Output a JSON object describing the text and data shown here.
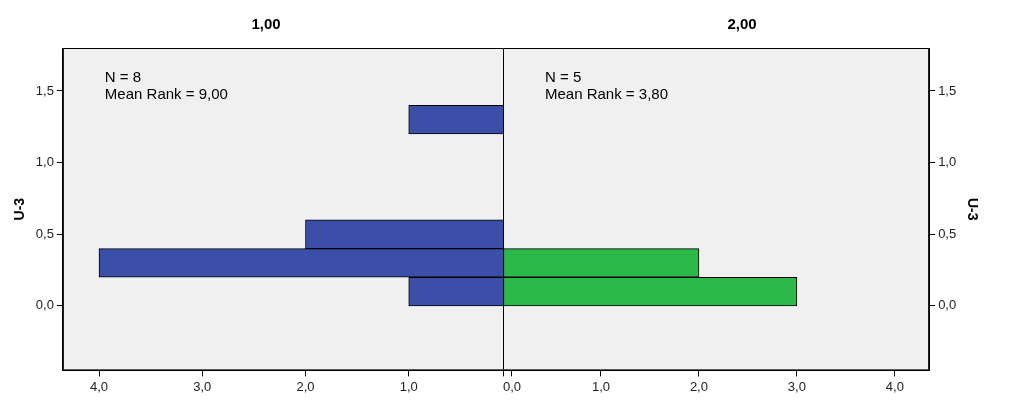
{
  "chart_data": [
    {
      "type": "histogram",
      "orientation": "horizontal",
      "title": "1,00",
      "ylabel": "U-3",
      "annotations": [
        "N = 8",
        "Mean Rank = 9,00"
      ],
      "bins": [
        0,
        0.2,
        0.4,
        0.6,
        0.8,
        1.0,
        1.2,
        1.4
      ],
      "values": [
        1,
        4,
        2,
        0,
        0,
        0,
        1
      ],
      "color": "#3c4fa8",
      "xlim": [
        4.35,
        0
      ],
      "xticks": [
        {
          "value": 4,
          "label": "4,0"
        },
        {
          "value": 3,
          "label": "3,0"
        },
        {
          "value": 2,
          "label": "2,0"
        },
        {
          "value": 1,
          "label": "1,0"
        },
        {
          "value": 0,
          "label": "0,0"
        }
      ],
      "ylim": [
        -0.45,
        1.8
      ],
      "yticks": [
        {
          "value": 0,
          "label": "0,0"
        },
        {
          "value": 0.5,
          "label": "0,5"
        },
        {
          "value": 1,
          "label": "1,0"
        },
        {
          "value": 1.5,
          "label": "1,5"
        }
      ],
      "grid": false
    },
    {
      "type": "histogram",
      "orientation": "horizontal",
      "title": "2,00",
      "ylabel": "U-3",
      "annotations": [
        "N = 5",
        "Mean Rank = 3,80"
      ],
      "bins": [
        0,
        0.2,
        0.4,
        0.6,
        0.8,
        1.0,
        1.2,
        1.4
      ],
      "values": [
        3,
        2,
        0,
        0,
        0,
        0,
        0
      ],
      "color": "#2db84a",
      "xlim": [
        0,
        4.35
      ],
      "xticks": [
        {
          "value": 0,
          "label": null
        },
        {
          "value": 1,
          "label": "1,0"
        },
        {
          "value": 2,
          "label": "2,0"
        },
        {
          "value": 3,
          "label": "3,0"
        },
        {
          "value": 4,
          "label": "4,0"
        }
      ],
      "ylim": [
        -0.45,
        1.8
      ],
      "yticks": [
        {
          "value": 0,
          "label": "0,0"
        },
        {
          "value": 0.5,
          "label": "0,5"
        },
        {
          "value": 1,
          "label": "1,0"
        },
        {
          "value": 1.5,
          "label": "1,5"
        }
      ],
      "grid": false
    }
  ]
}
